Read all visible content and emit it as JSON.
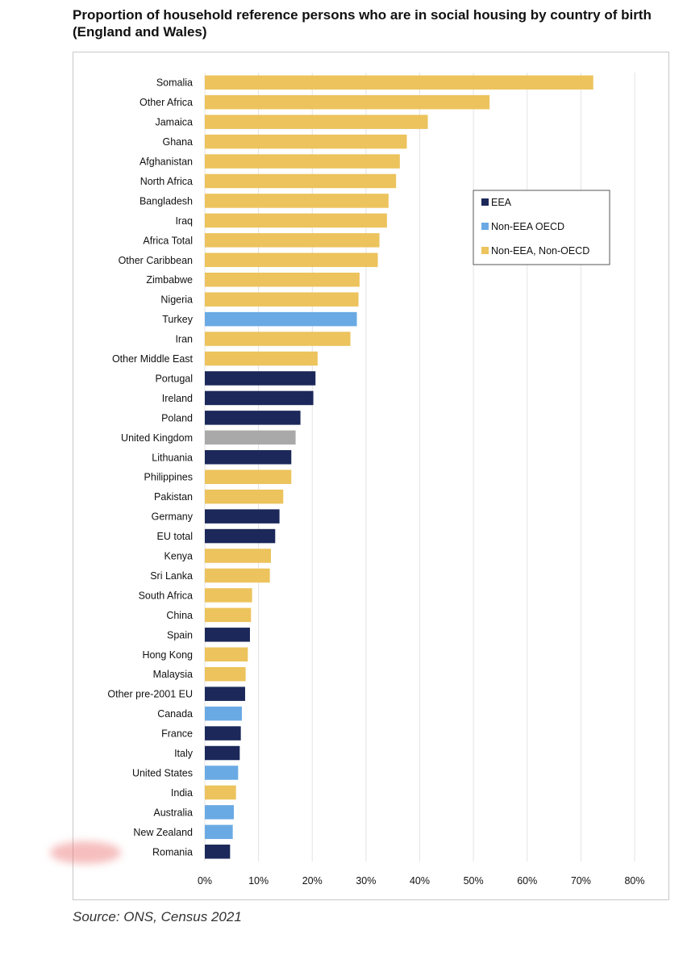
{
  "title": "Proportion of household reference persons who are in social housing by country of birth (England and Wales)",
  "source": "Source: ONS, Census 2021",
  "colors": {
    "EEA": "#1b2859",
    "Non-EEA OECD": "#6aaae4",
    "Non-EEA, Non-OECD": "#ecc35c",
    "UK": "#a9a9a9",
    "grid": "#e3e3e3"
  },
  "chart_data": {
    "type": "bar",
    "orientation": "horizontal",
    "xlim": [
      0,
      80
    ],
    "xticks": [
      0,
      10,
      20,
      30,
      40,
      50,
      60,
      70,
      80
    ],
    "xtick_labels": [
      "0%",
      "10%",
      "20%",
      "30%",
      "40%",
      "50%",
      "60%",
      "70%",
      "80%"
    ],
    "grid": true,
    "legend_position": "upper-right",
    "legend": [
      {
        "label": "EEA",
        "group": "EEA"
      },
      {
        "label": "Non-EEA OECD",
        "group": "Non-EEA OECD"
      },
      {
        "label": "Non-EEA, Non-OECD",
        "group": "Non-EEA, Non-OECD"
      }
    ],
    "bars": [
      {
        "category": "Somalia",
        "value": 72.3,
        "group": "Non-EEA, Non-OECD"
      },
      {
        "category": "Other Africa",
        "value": 53.0,
        "group": "Non-EEA, Non-OECD"
      },
      {
        "category": "Jamaica",
        "value": 41.5,
        "group": "Non-EEA, Non-OECD"
      },
      {
        "category": "Ghana",
        "value": 37.6,
        "group": "Non-EEA, Non-OECD"
      },
      {
        "category": "Afghanistan",
        "value": 36.3,
        "group": "Non-EEA, Non-OECD"
      },
      {
        "category": "North Africa",
        "value": 35.6,
        "group": "Non-EEA, Non-OECD"
      },
      {
        "category": "Bangladesh",
        "value": 34.2,
        "group": "Non-EEA, Non-OECD"
      },
      {
        "category": "Iraq",
        "value": 33.9,
        "group": "Non-EEA, Non-OECD"
      },
      {
        "category": "Africa Total",
        "value": 32.5,
        "group": "Non-EEA, Non-OECD"
      },
      {
        "category": "Other Caribbean",
        "value": 32.2,
        "group": "Non-EEA, Non-OECD"
      },
      {
        "category": "Zimbabwe",
        "value": 28.8,
        "group": "Non-EEA, Non-OECD"
      },
      {
        "category": "Nigeria",
        "value": 28.6,
        "group": "Non-EEA, Non-OECD"
      },
      {
        "category": "Turkey",
        "value": 28.3,
        "group": "Non-EEA OECD"
      },
      {
        "category": "Iran",
        "value": 27.1,
        "group": "Non-EEA, Non-OECD"
      },
      {
        "category": "Other Middle East",
        "value": 21.0,
        "group": "Non-EEA, Non-OECD"
      },
      {
        "category": "Portugal",
        "value": 20.6,
        "group": "EEA"
      },
      {
        "category": "Ireland",
        "value": 20.2,
        "group": "EEA"
      },
      {
        "category": "Poland",
        "value": 17.8,
        "group": "EEA"
      },
      {
        "category": "United Kingdom",
        "value": 16.9,
        "group": "UK"
      },
      {
        "category": "Lithuania",
        "value": 16.1,
        "group": "EEA"
      },
      {
        "category": "Philippines",
        "value": 16.1,
        "group": "Non-EEA, Non-OECD"
      },
      {
        "category": "Pakistan",
        "value": 14.6,
        "group": "Non-EEA, Non-OECD"
      },
      {
        "category": "Germany",
        "value": 13.9,
        "group": "EEA"
      },
      {
        "category": "EU total",
        "value": 13.1,
        "group": "EEA"
      },
      {
        "category": "Kenya",
        "value": 12.3,
        "group": "Non-EEA, Non-OECD"
      },
      {
        "category": "Sri Lanka",
        "value": 12.1,
        "group": "Non-EEA, Non-OECD"
      },
      {
        "category": "South Africa",
        "value": 8.8,
        "group": "Non-EEA, Non-OECD"
      },
      {
        "category": "China",
        "value": 8.6,
        "group": "Non-EEA, Non-OECD"
      },
      {
        "category": "Spain",
        "value": 8.4,
        "group": "EEA"
      },
      {
        "category": "Hong Kong",
        "value": 8.0,
        "group": "Non-EEA, Non-OECD"
      },
      {
        "category": "Malaysia",
        "value": 7.6,
        "group": "Non-EEA, Non-OECD"
      },
      {
        "category": "Other pre-2001 EU",
        "value": 7.5,
        "group": "EEA"
      },
      {
        "category": "Canada",
        "value": 6.9,
        "group": "Non-EEA OECD"
      },
      {
        "category": "France",
        "value": 6.7,
        "group": "EEA"
      },
      {
        "category": "Italy",
        "value": 6.5,
        "group": "EEA"
      },
      {
        "category": "United States",
        "value": 6.2,
        "group": "Non-EEA OECD"
      },
      {
        "category": "India",
        "value": 5.8,
        "group": "Non-EEA, Non-OECD"
      },
      {
        "category": "Australia",
        "value": 5.4,
        "group": "Non-EEA OECD"
      },
      {
        "category": "New Zealand",
        "value": 5.2,
        "group": "Non-EEA OECD"
      },
      {
        "category": "Romania",
        "value": 4.7,
        "group": "EEA"
      }
    ]
  }
}
